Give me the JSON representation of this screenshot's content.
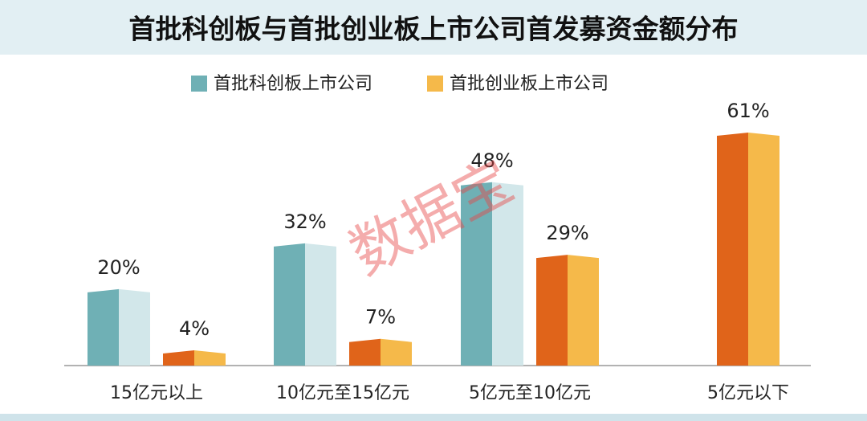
{
  "chart_data": {
    "type": "bar",
    "title": "首批科创板与首批创业板上市公司首发募资金额分布",
    "watermark": "数据宝",
    "categories": [
      "15亿元以上",
      "10亿元至15亿元",
      "5亿元至10亿元",
      "5亿元以下"
    ],
    "series": [
      {
        "name": "首批科创板上市公司",
        "color": "#6fb0b5",
        "shade_color": "#d2e7ea",
        "values": [
          20,
          32,
          48,
          null
        ],
        "value_labels": [
          "20%",
          "32%",
          "48%",
          null
        ]
      },
      {
        "name": "首批创业板上市公司",
        "color": "#f5b94a",
        "shade_color": "#e0641a",
        "values": [
          4,
          7,
          29,
          61
        ],
        "value_labels": [
          "4%",
          "7%",
          "29%",
          "61%"
        ]
      }
    ]
  }
}
